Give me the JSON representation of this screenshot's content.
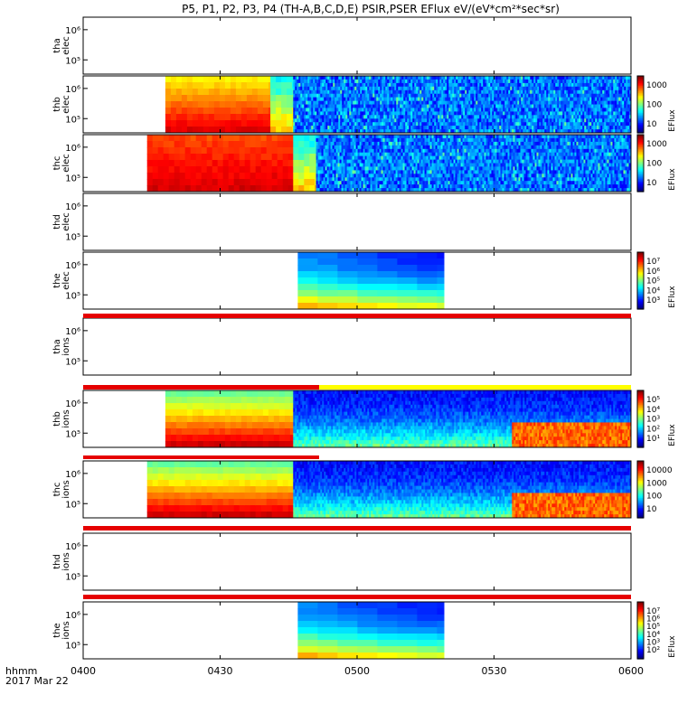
{
  "chart_data": {
    "type": "heatmap",
    "title": "P5, P1, P2, P3, P4 (TH-A,B,C,D,E) PSIR,PSER EFlux eV/(eV*cm²*sec*sr)",
    "x_ticks": [
      "0400",
      "0430",
      "0500",
      "0530",
      "0600"
    ],
    "x_range": [
      "0400",
      "0600"
    ],
    "x_axis_label": "hhmm",
    "date": "2017 Mar 22",
    "panels": [
      {
        "ylabel_top": "tha",
        "ylabel_bot": "elec",
        "y_ticks": [
          "10⁶",
          "10⁵"
        ],
        "has_data": false
      },
      {
        "ylabel_top": "thb",
        "ylabel_bot": "elec",
        "y_ticks": [
          "10⁶",
          "10⁵"
        ],
        "has_data": true,
        "colorbar": {
          "ticks": [
            "1000",
            "100",
            "10"
          ],
          "label": "EFlux"
        },
        "segments": [
          {
            "start": "0418",
            "end": "0441",
            "style": "hot-lowE"
          },
          {
            "start": "0441",
            "end": "0446",
            "style": "transition"
          },
          {
            "start": "0446",
            "end": "0600",
            "style": "noisy-cold"
          }
        ]
      },
      {
        "ylabel_top": "thc",
        "ylabel_bot": "elec",
        "y_ticks": [
          "10⁶",
          "10⁵"
        ],
        "has_data": true,
        "colorbar": {
          "ticks": [
            "1000",
            "100",
            "10"
          ],
          "label": "EFlux"
        },
        "segments": [
          {
            "start": "0414",
            "end": "0446",
            "style": "very-hot"
          },
          {
            "start": "0446",
            "end": "0451",
            "style": "transition"
          },
          {
            "start": "0451",
            "end": "0600",
            "style": "noisy-cold"
          }
        ]
      },
      {
        "ylabel_top": "thd",
        "ylabel_bot": "elec",
        "y_ticks": [
          "10⁶",
          "10⁵"
        ],
        "has_data": false
      },
      {
        "ylabel_top": "the",
        "ylabel_bot": "elec",
        "y_ticks": [
          "10⁶",
          "10⁵"
        ],
        "has_data": true,
        "colorbar": {
          "ticks": [
            "10⁷",
            "10⁶",
            "10⁵",
            "10⁴",
            "10³"
          ],
          "label": "EFlux"
        },
        "segments": [
          {
            "start": "0447",
            "end": "0519",
            "style": "cool-blocks"
          }
        ]
      },
      {
        "ylabel_top": "tha",
        "ylabel_bot": "ions",
        "y_ticks": [
          "10⁶",
          "10⁵"
        ],
        "has_data": false
      },
      {
        "ylabel_top": "thb",
        "ylabel_bot": "ions",
        "y_ticks": [
          "10⁶",
          "10⁵"
        ],
        "has_data": true,
        "colorbar": {
          "ticks": [
            "10⁵",
            "10⁴",
            "10³",
            "10²",
            "10¹"
          ],
          "label": "EFlux"
        },
        "segments": [
          {
            "start": "0418",
            "end": "0446",
            "style": "ion-grad"
          },
          {
            "start": "0446",
            "end": "0600",
            "style": "ion-cold"
          }
        ]
      },
      {
        "ylabel_top": "thc",
        "ylabel_bot": "ions",
        "y_ticks": [
          "10⁶",
          "10⁵"
        ],
        "has_data": true,
        "colorbar": {
          "ticks": [
            "10000",
            "1000",
            "100",
            "10"
          ],
          "label": ""
        },
        "segments": [
          {
            "start": "0414",
            "end": "0446",
            "style": "ion-grad"
          },
          {
            "start": "0446",
            "end": "0600",
            "style": "ion-cold"
          }
        ]
      },
      {
        "ylabel_top": "thd",
        "ylabel_bot": "ions",
        "y_ticks": [
          "10⁶",
          "10⁵"
        ],
        "has_data": false
      },
      {
        "ylabel_top": "the",
        "ylabel_bot": "ions",
        "y_ticks": [
          "10⁶",
          "10⁵"
        ],
        "has_data": true,
        "colorbar": {
          "ticks": [
            "10⁷",
            "10⁶",
            "10⁵",
            "10⁴",
            "10³",
            "10²"
          ],
          "label": "EFlux"
        },
        "segments": [
          {
            "start": "0447",
            "end": "0519",
            "style": "cool-blocks"
          }
        ]
      }
    ]
  }
}
